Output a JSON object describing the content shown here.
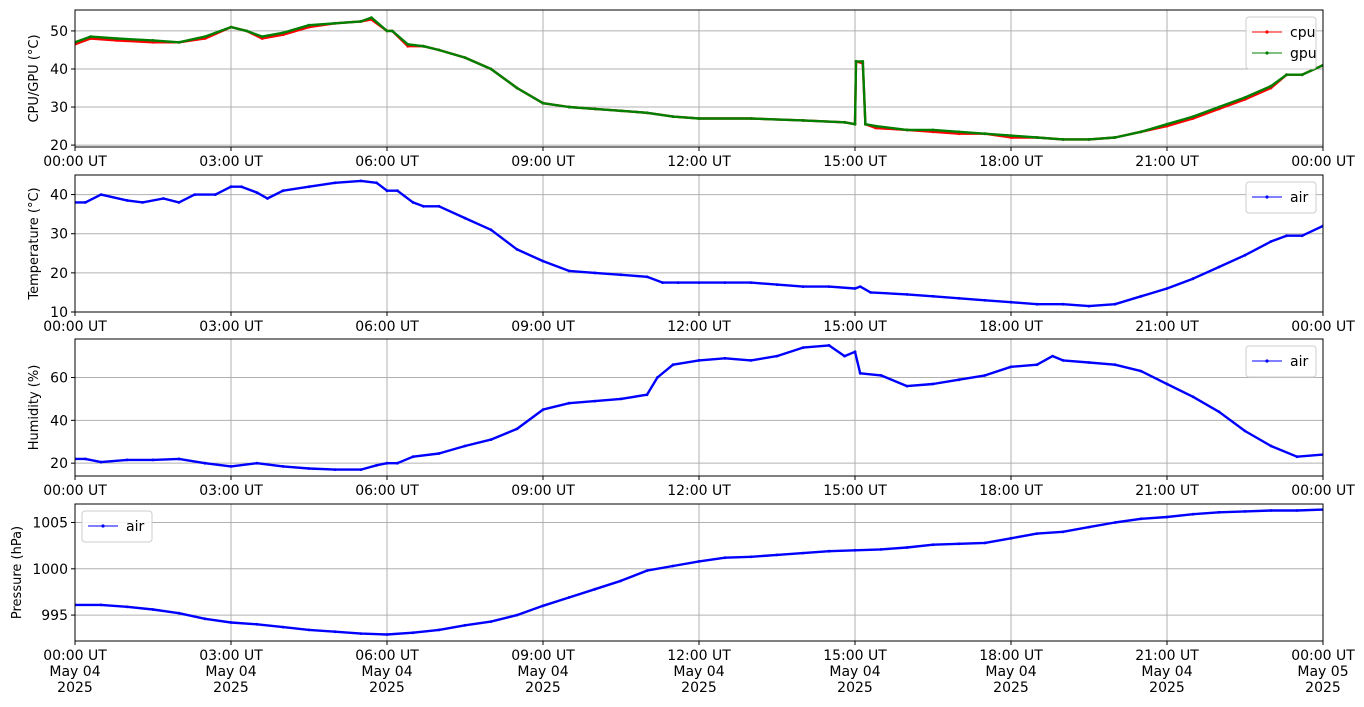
{
  "chart_data": [
    {
      "type": "line",
      "ylabel": "CPU/GPU (°C)",
      "ylim": [
        19.5,
        55.5
      ],
      "yticks": [
        20,
        30,
        40,
        50
      ],
      "xlim": [
        0,
        24
      ],
      "xticks": [
        0,
        3,
        6,
        9,
        12,
        15,
        18,
        21,
        24
      ],
      "xtick_labels": [
        "00:00 UT",
        "03:00 UT",
        "06:00 UT",
        "09:00 UT",
        "12:00 UT",
        "15:00 UT",
        "18:00 UT",
        "21:00 UT",
        "00:00 UT"
      ],
      "grid": true,
      "legend": "top-right",
      "series": [
        {
          "name": "cpu",
          "color": "#ff0000",
          "x": [
            0,
            0.3,
            0.8,
            1.5,
            2.0,
            2.5,
            3.0,
            3.3,
            3.6,
            4.0,
            4.5,
            5.0,
            5.5,
            5.7,
            6.0,
            6.1,
            6.4,
            6.7,
            7.0,
            7.5,
            8.0,
            8.5,
            9.0,
            9.5,
            10.0,
            10.5,
            11.0,
            11.5,
            12.0,
            13.0,
            14.0,
            14.8,
            15.0,
            15.02,
            15.15,
            15.2,
            15.4,
            16.0,
            16.5,
            17.0,
            17.5,
            18.0,
            18.5,
            19.0,
            19.5,
            20.0,
            20.5,
            21.0,
            21.5,
            22.0,
            22.5,
            23.0,
            23.3,
            23.6,
            24.0
          ],
          "y": [
            46.5,
            48,
            47.5,
            47,
            47,
            48,
            51,
            50,
            48,
            49,
            51,
            52,
            52.5,
            53,
            50,
            50,
            46,
            46,
            45,
            43,
            40,
            35,
            31,
            30,
            29.5,
            29,
            28.5,
            27.5,
            27,
            27,
            26.5,
            26,
            25.5,
            42,
            41.5,
            25.5,
            24.5,
            24,
            23.5,
            23,
            23,
            22,
            22,
            21.5,
            21.5,
            22,
            23.5,
            25,
            27,
            29.5,
            32,
            35,
            38.5,
            38.5,
            41
          ]
        },
        {
          "name": "gpu",
          "color": "#008000",
          "x": [
            0,
            0.3,
            0.8,
            1.5,
            2.0,
            2.5,
            3.0,
            3.3,
            3.6,
            4.0,
            4.5,
            5.0,
            5.5,
            5.7,
            6.0,
            6.1,
            6.4,
            6.7,
            7.0,
            7.5,
            8.0,
            8.5,
            9.0,
            9.5,
            10.0,
            10.5,
            11.0,
            11.5,
            12.0,
            13.0,
            14.0,
            14.8,
            15.0,
            15.02,
            15.15,
            15.2,
            15.4,
            16.0,
            16.5,
            17.0,
            17.5,
            18.0,
            18.5,
            19.0,
            19.5,
            20.0,
            20.5,
            21.0,
            21.5,
            22.0,
            22.5,
            23.0,
            23.3,
            23.6,
            24.0
          ],
          "y": [
            47,
            48.5,
            48,
            47.5,
            47,
            48.5,
            51,
            50,
            48.5,
            49.5,
            51.5,
            52,
            52.5,
            53.5,
            50,
            50,
            46.5,
            46,
            45,
            43,
            40,
            35,
            31,
            30,
            29.5,
            29,
            28.5,
            27.5,
            27,
            27,
            26.5,
            26,
            25.5,
            42,
            42,
            25.5,
            25,
            24,
            24,
            23.5,
            23,
            22.5,
            22,
            21.5,
            21.5,
            22,
            23.5,
            25.5,
            27.5,
            30,
            32.5,
            35.5,
            38.5,
            38.5,
            41
          ]
        }
      ]
    },
    {
      "type": "line",
      "ylabel": "Temperature (°C)",
      "ylim": [
        10,
        45
      ],
      "yticks": [
        10,
        20,
        30,
        40
      ],
      "xlim": [
        0,
        24
      ],
      "xticks": [
        0,
        3,
        6,
        9,
        12,
        15,
        18,
        21,
        24
      ],
      "xtick_labels": [
        "00:00 UT",
        "03:00 UT",
        "06:00 UT",
        "09:00 UT",
        "12:00 UT",
        "15:00 UT",
        "18:00 UT",
        "21:00 UT",
        "00:00 UT"
      ],
      "grid": true,
      "legend": "top-right",
      "series": [
        {
          "name": "air",
          "color": "#0000ff",
          "x": [
            0,
            0.2,
            0.5,
            1.0,
            1.3,
            1.7,
            2.0,
            2.3,
            2.7,
            3.0,
            3.2,
            3.5,
            3.7,
            4.0,
            4.5,
            5.0,
            5.5,
            5.8,
            6.0,
            6.2,
            6.5,
            6.7,
            7.0,
            7.5,
            8.0,
            8.5,
            9.0,
            9.5,
            10.0,
            10.5,
            11.0,
            11.3,
            11.6,
            12.0,
            12.5,
            13.0,
            13.5,
            14.0,
            14.5,
            15.0,
            15.1,
            15.3,
            16.0,
            16.5,
            17.0,
            17.5,
            18.0,
            18.5,
            19.0,
            19.5,
            20.0,
            20.5,
            21.0,
            21.5,
            22.0,
            22.5,
            23.0,
            23.3,
            23.6,
            24.0
          ],
          "y": [
            38,
            38,
            40,
            38.5,
            38,
            39,
            38,
            40,
            40,
            42,
            42,
            40.5,
            39,
            41,
            42,
            43,
            43.5,
            43,
            41,
            41,
            38,
            37,
            37,
            34,
            31,
            26,
            23,
            20.5,
            20,
            19.5,
            19,
            17.5,
            17.5,
            17.5,
            17.5,
            17.5,
            17,
            16.5,
            16.5,
            16,
            16.5,
            15,
            14.5,
            14,
            13.5,
            13,
            12.5,
            12,
            12,
            11.5,
            12,
            14,
            16,
            18.5,
            21.5,
            24.5,
            28,
            29.5,
            29.5,
            32
          ]
        }
      ]
    },
    {
      "type": "line",
      "ylabel": "Humidity (%)",
      "ylim": [
        14,
        78
      ],
      "yticks": [
        20,
        40,
        60
      ],
      "xlim": [
        0,
        24
      ],
      "xticks": [
        0,
        3,
        6,
        9,
        12,
        15,
        18,
        21,
        24
      ],
      "xtick_labels": [
        "00:00 UT",
        "03:00 UT",
        "06:00 UT",
        "09:00 UT",
        "12:00 UT",
        "15:00 UT",
        "18:00 UT",
        "21:00 UT",
        "00:00 UT"
      ],
      "grid": true,
      "legend": "top-right",
      "series": [
        {
          "name": "air",
          "color": "#0000ff",
          "x": [
            0,
            0.2,
            0.5,
            1.0,
            1.5,
            2.0,
            2.5,
            3.0,
            3.5,
            4.0,
            4.5,
            5.0,
            5.5,
            5.8,
            6.0,
            6.2,
            6.5,
            7.0,
            7.5,
            8.0,
            8.5,
            9.0,
            9.5,
            10.0,
            10.5,
            11.0,
            11.2,
            11.5,
            12.0,
            12.5,
            13.0,
            13.5,
            14.0,
            14.5,
            14.8,
            15.0,
            15.1,
            15.5,
            16.0,
            16.5,
            17.0,
            17.5,
            18.0,
            18.5,
            18.8,
            19.0,
            19.5,
            20.0,
            20.5,
            21.0,
            21.5,
            22.0,
            22.5,
            23.0,
            23.5,
            24.0
          ],
          "y": [
            22,
            22,
            20.5,
            21.5,
            21.5,
            22,
            20,
            18.5,
            20,
            18.5,
            17.5,
            17,
            17,
            19,
            20,
            20,
            23,
            24.5,
            28,
            31,
            36,
            45,
            48,
            49,
            50,
            52,
            60,
            66,
            68,
            69,
            68,
            70,
            74,
            75,
            70,
            72,
            62,
            61,
            56,
            57,
            59,
            61,
            65,
            66,
            70,
            68,
            67,
            66,
            63,
            57,
            51,
            44,
            35,
            28,
            23,
            24
          ]
        }
      ]
    },
    {
      "type": "line",
      "ylabel": "Pressure (hPa)",
      "ylim": [
        992.2,
        1007
      ],
      "yticks": [
        995,
        1000,
        1005
      ],
      "xlim": [
        0,
        24
      ],
      "xticks": [
        0,
        3,
        6,
        9,
        12,
        15,
        18,
        21,
        24
      ],
      "xtick_labels": [
        [
          "00:00 UT",
          "May 04",
          "2025"
        ],
        [
          "03:00 UT",
          "May 04",
          "2025"
        ],
        [
          "06:00 UT",
          "May 04",
          "2025"
        ],
        [
          "09:00 UT",
          "May 04",
          "2025"
        ],
        [
          "12:00 UT",
          "May 04",
          "2025"
        ],
        [
          "15:00 UT",
          "May 04",
          "2025"
        ],
        [
          "18:00 UT",
          "May 04",
          "2025"
        ],
        [
          "21:00 UT",
          "May 04",
          "2025"
        ],
        [
          "00:00 UT",
          "May 05",
          "2025"
        ]
      ],
      "grid": true,
      "legend": "top-left",
      "series": [
        {
          "name": "air",
          "color": "#0000ff",
          "x": [
            0,
            0.5,
            1.0,
            1.5,
            2.0,
            2.5,
            3.0,
            3.5,
            4.0,
            4.5,
            5.0,
            5.5,
            6.0,
            6.5,
            7.0,
            7.5,
            8.0,
            8.5,
            9.0,
            9.5,
            10.0,
            10.5,
            11.0,
            11.5,
            12.0,
            12.5,
            13.0,
            13.5,
            14.0,
            14.5,
            15.0,
            15.5,
            16.0,
            16.5,
            17.0,
            17.5,
            18.0,
            18.5,
            19.0,
            19.5,
            20.0,
            20.5,
            21.0,
            21.5,
            22.0,
            22.5,
            23.0,
            23.5,
            24.0
          ],
          "y": [
            996.1,
            996.1,
            995.9,
            995.6,
            995.2,
            994.6,
            994.2,
            994.0,
            993.7,
            993.4,
            993.2,
            993.0,
            992.9,
            993.1,
            993.4,
            993.9,
            994.3,
            995.0,
            996.0,
            996.9,
            997.8,
            998.7,
            999.8,
            1000.3,
            1000.8,
            1001.2,
            1001.3,
            1001.5,
            1001.7,
            1001.9,
            1002.0,
            1002.1,
            1002.3,
            1002.6,
            1002.7,
            1002.8,
            1003.3,
            1003.8,
            1004.0,
            1004.5,
            1005.0,
            1005.4,
            1005.6,
            1005.9,
            1006.1,
            1006.2,
            1006.3,
            1006.3,
            1006.4
          ]
        }
      ]
    }
  ]
}
